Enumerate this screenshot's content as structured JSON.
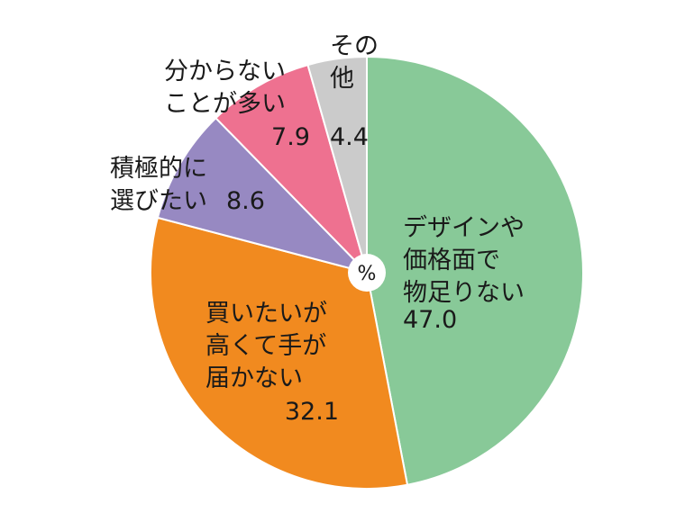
{
  "chart_data": {
    "type": "pie",
    "unit": "%",
    "slices": [
      {
        "lines": [
          "デザインや",
          "価格面で",
          "物足りない"
        ],
        "value": 47.0,
        "value_label": "47.0",
        "color": "#88c998"
      },
      {
        "lines": [
          "買いたいが",
          "高くて手が",
          "届かない"
        ],
        "value": 32.1,
        "value_label": "32.1",
        "color": "#f18a1f"
      },
      {
        "lines": [
          "積極的に",
          "選びたい"
        ],
        "value": 8.6,
        "value_label": "8.6",
        "color": "#9789c2"
      },
      {
        "lines": [
          "分からない",
          "ことが多い"
        ],
        "value": 7.9,
        "value_label": "7.9",
        "color": "#ee7190"
      },
      {
        "lines": [
          "その",
          "他"
        ],
        "value": 4.4,
        "value_label": "4.4",
        "color": "#cbcbcb"
      }
    ]
  }
}
